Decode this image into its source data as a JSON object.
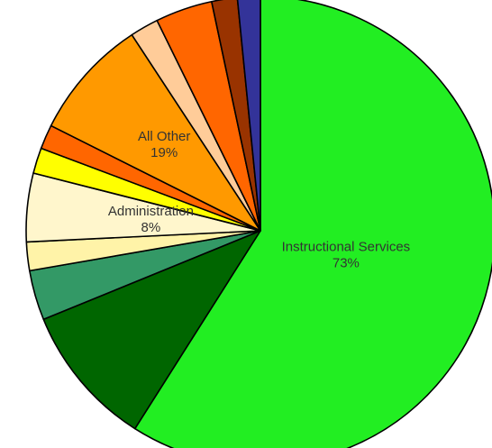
{
  "chart_data": {
    "type": "pie",
    "start_angle_deg": -90,
    "direction": "clockwise",
    "slices": [
      {
        "label": "Instructional Services",
        "percent": 73,
        "value": 60.0,
        "color": "#22ee22",
        "show_label": true
      },
      {
        "label": "",
        "percent": null,
        "value": 10.0,
        "color": "#006600",
        "show_label": false
      },
      {
        "label": "",
        "percent": null,
        "value": 3.5,
        "color": "#339966",
        "show_label": false
      },
      {
        "label": "",
        "percent": null,
        "value": 2.0,
        "color": "#fff3a8",
        "show_label": false
      },
      {
        "label": "Administration",
        "percent": 8,
        "value": 4.8,
        "color": "#fff6cc",
        "show_label": true
      },
      {
        "label": "",
        "percent": null,
        "value": 1.8,
        "color": "#ffff00",
        "show_label": false
      },
      {
        "label": "",
        "percent": null,
        "value": 1.7,
        "color": "#ff6600",
        "show_label": false
      },
      {
        "label": "All Other",
        "percent": 19,
        "value": 8.5,
        "color": "#ff9900",
        "show_label": true
      },
      {
        "label": "",
        "percent": null,
        "value": 2.0,
        "color": "#ffcc99",
        "show_label": false
      },
      {
        "label": "",
        "percent": null,
        "value": 4.0,
        "color": "#ff6600",
        "show_label": false
      },
      {
        "label": "",
        "percent": null,
        "value": 1.8,
        "color": "#993300",
        "show_label": false
      },
      {
        "label": "",
        "percent": null,
        "value": 1.6,
        "color": "#333399",
        "show_label": false
      }
    ]
  }
}
